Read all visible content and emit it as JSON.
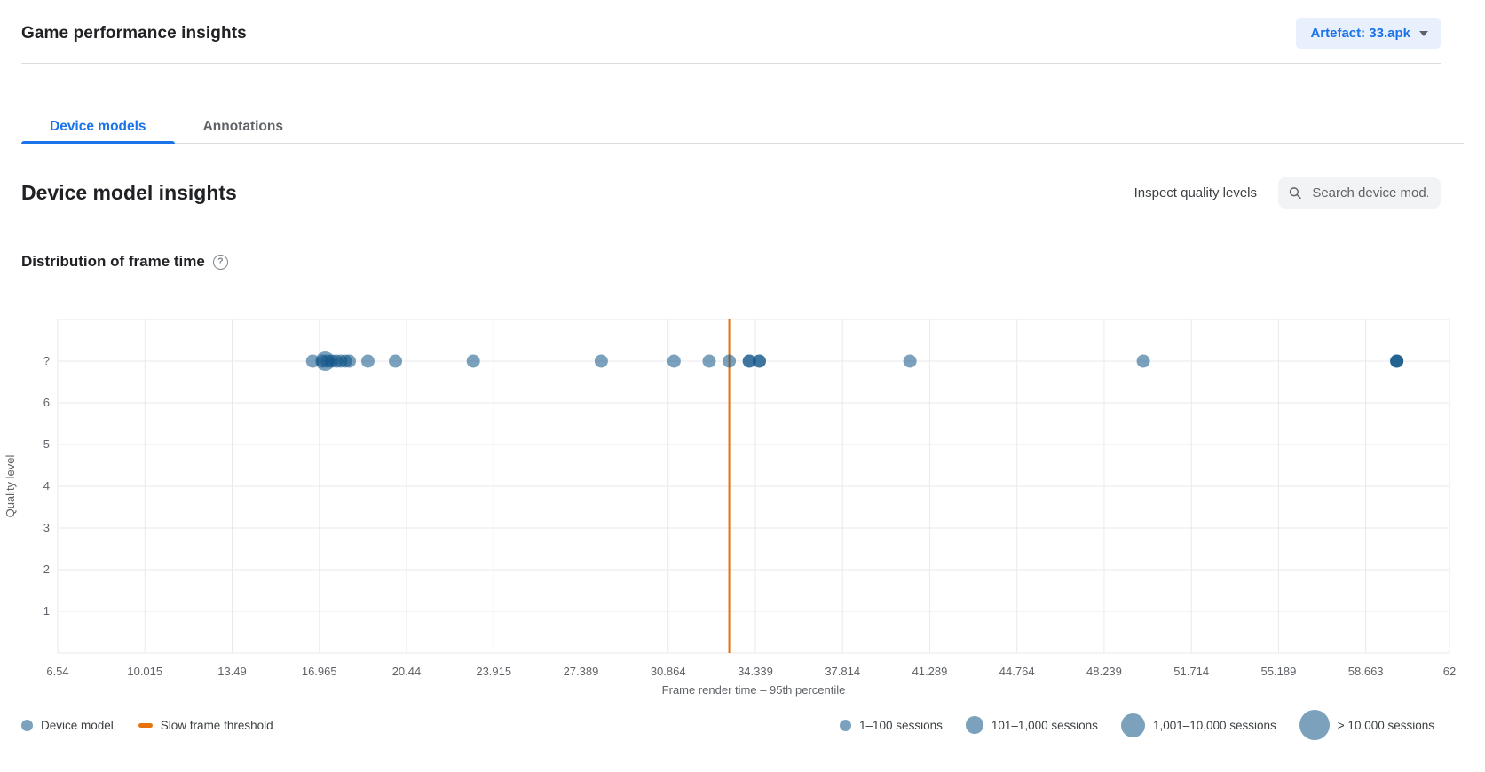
{
  "header": {
    "title": "Game performance insights",
    "artefact_button": {
      "label": "Artefact: 33.apk"
    }
  },
  "tabs": [
    {
      "label": "Device models",
      "active": true
    },
    {
      "label": "Annotations",
      "active": false
    }
  ],
  "section": {
    "title": "Device model insights",
    "inspect_link": "Inspect quality levels",
    "search_placeholder": "Search device mod..."
  },
  "chart": {
    "title": "Distribution of frame time"
  },
  "chart_data": {
    "type": "scatter",
    "title": "Distribution of frame time",
    "xlabel": "Frame render time – 95th percentile",
    "ylabel": "Quality level",
    "xlim": [
      6.54,
      62
    ],
    "x_ticks": [
      6.54,
      10.015,
      13.49,
      16.965,
      20.44,
      23.915,
      27.389,
      30.864,
      34.339,
      37.814,
      41.289,
      44.764,
      48.239,
      51.714,
      55.189,
      58.663,
      62
    ],
    "x_tick_labels": [
      "6.54",
      "10.015",
      "13.49",
      "16.965",
      "20.44",
      "23.915",
      "27.389",
      "30.864",
      "34.339",
      "37.814",
      "41.289",
      "44.764",
      "48.239",
      "51.714",
      "55.189",
      "58.663",
      "62"
    ],
    "y_categories": [
      "?",
      "6",
      "5",
      "4",
      "3",
      "2",
      "1"
    ],
    "grid": true,
    "slow_frame_threshold": 33.3,
    "points": [
      {
        "x": 16.7,
        "quality": "?",
        "sessions": "1–100",
        "count": 1
      },
      {
        "x": 17.2,
        "quality": "?",
        "sessions": "101–1,000",
        "count": 1
      },
      {
        "x": 17.1,
        "quality": "?",
        "sessions": "1–100",
        "count": 1
      },
      {
        "x": 17.28,
        "quality": "?",
        "sessions": "1–100",
        "count": 1
      },
      {
        "x": 17.46,
        "quality": "?",
        "sessions": "1–100",
        "count": 1
      },
      {
        "x": 17.64,
        "quality": "?",
        "sessions": "1–100",
        "count": 1
      },
      {
        "x": 17.82,
        "quality": "?",
        "sessions": "1–100",
        "count": 1
      },
      {
        "x": 18.0,
        "quality": "?",
        "sessions": "1–100",
        "count": 1
      },
      {
        "x": 18.16,
        "quality": "?",
        "sessions": "1–100",
        "count": 1
      },
      {
        "x": 18.9,
        "quality": "?",
        "sessions": "1–100",
        "count": 1
      },
      {
        "x": 20.0,
        "quality": "?",
        "sessions": "1–100",
        "count": 1
      },
      {
        "x": 23.1,
        "quality": "?",
        "sessions": "1–100",
        "count": 1
      },
      {
        "x": 28.2,
        "quality": "?",
        "sessions": "1–100",
        "count": 1
      },
      {
        "x": 31.1,
        "quality": "?",
        "sessions": "1–100",
        "count": 1
      },
      {
        "x": 32.5,
        "quality": "?",
        "sessions": "1–100",
        "count": 1
      },
      {
        "x": 33.3,
        "quality": "?",
        "sessions": "1–100",
        "count": 1
      },
      {
        "x": 34.1,
        "quality": "?",
        "sessions": "1–100",
        "count": 2
      },
      {
        "x": 34.5,
        "quality": "?",
        "sessions": "1–100",
        "count": 2
      },
      {
        "x": 40.5,
        "quality": "?",
        "sessions": "1–100",
        "count": 1
      },
      {
        "x": 49.8,
        "quality": "?",
        "sessions": "1–100",
        "count": 1
      },
      {
        "x": 59.9,
        "quality": "?",
        "sessions": "1–100",
        "count": 3
      }
    ],
    "legend_position": "bottom"
  },
  "legend": {
    "series": [
      {
        "label": "Device model",
        "swatch": "dot"
      },
      {
        "label": "Slow frame threshold",
        "swatch": "line"
      }
    ],
    "sizes": [
      {
        "label": "1–100 sessions"
      },
      {
        "label": "101–1,000 sessions"
      },
      {
        "label": "1,001–10,000 sessions"
      },
      {
        "label": "> 10,000 sessions"
      }
    ]
  },
  "colors": {
    "accent_blue": "#1a73e8",
    "button_bg": "#e8f0fe",
    "dot_fill": "#0f5487",
    "dot_opacity": 0.55,
    "legend_dot": "#7ba1bd",
    "threshold_orange": "#e8710a",
    "grid": "#e8eaed",
    "divider": "#dadce0",
    "text_primary": "#202124",
    "text_secondary": "#5f6368",
    "search_bg": "#f1f3f4"
  }
}
